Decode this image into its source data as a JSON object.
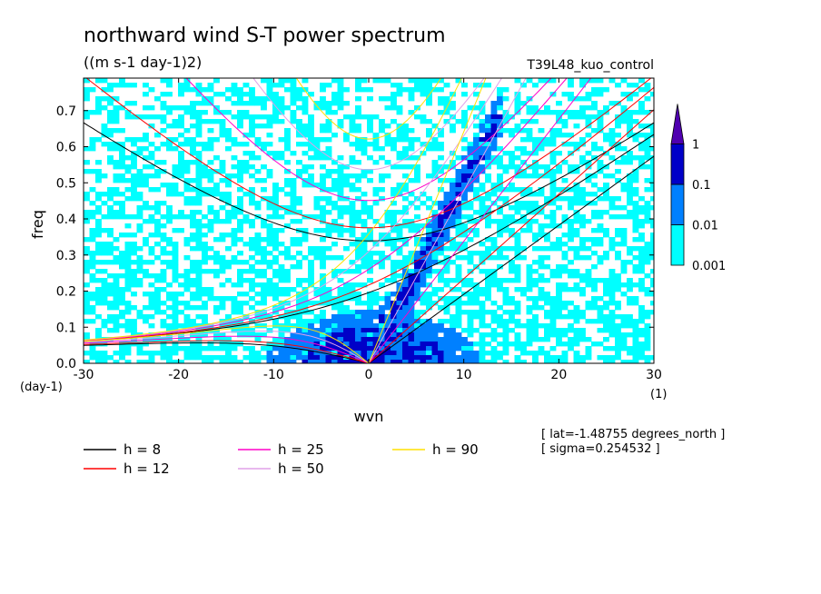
{
  "header": {
    "title": "northward wind S-T power spectrum",
    "units": "((m s-1 day-1)2)",
    "run": "T39L48_kuo_control"
  },
  "info": {
    "lat": "[ lat=-1.48755 degrees_north ]",
    "sigma": "[ sigma=0.254532 ]"
  },
  "colors": {
    "level_001": "#00ffff",
    "level_01": "#0080ff",
    "level_1": "#0000c8",
    "level_max": "#5000b0",
    "h8": "#000000",
    "h12": "#ff0000",
    "h25": "#ff00c8",
    "h50": "#e0a0e8",
    "h90": "#ffe000"
  },
  "chart_data": {
    "type": "heatmap",
    "title": "northward wind S-T power spectrum",
    "subtitle": "((m s-1 day-1)2)",
    "xlabel": "wvn",
    "ylabel": "freq",
    "x_unit": "(1)",
    "y_unit": "(day-1)",
    "xlim": [
      -30,
      30
    ],
    "ylim": [
      0,
      0.79
    ],
    "x_ticks": [
      -30,
      -20,
      -10,
      0,
      10,
      20,
      30
    ],
    "x_tick_labels": [
      "-30",
      "-20",
      "-10",
      "0",
      "10",
      "20",
      "30"
    ],
    "y_ticks": [
      0.0,
      0.1,
      0.2,
      0.3,
      0.4,
      0.5,
      0.6,
      0.7
    ],
    "y_tick_labels": [
      "0.0",
      "0.1",
      "0.2",
      "0.3",
      "0.4",
      "0.5",
      "0.6",
      "0.7"
    ],
    "colorbar": {
      "levels": [
        0.001,
        0.01,
        0.1,
        1
      ],
      "labels": [
        "0.001",
        "0.01",
        "0.1",
        "1"
      ],
      "colors": [
        "#00ffff",
        "#0080ff",
        "#0000c8",
        "#5000b0"
      ]
    },
    "dispersion_curves": [
      {
        "label": "h = 8",
        "h": 8,
        "color": "#000000"
      },
      {
        "label": "h = 12",
        "h": 12,
        "color": "#ff0000"
      },
      {
        "label": "h = 25",
        "h": 25,
        "color": "#ff00c8"
      },
      {
        "label": "h = 50",
        "h": 50,
        "color": "#e0a0e8"
      },
      {
        "label": "h = 90",
        "h": 90,
        "color": "#ffe000"
      }
    ],
    "grid": false,
    "legend_position": "bottom-left"
  }
}
